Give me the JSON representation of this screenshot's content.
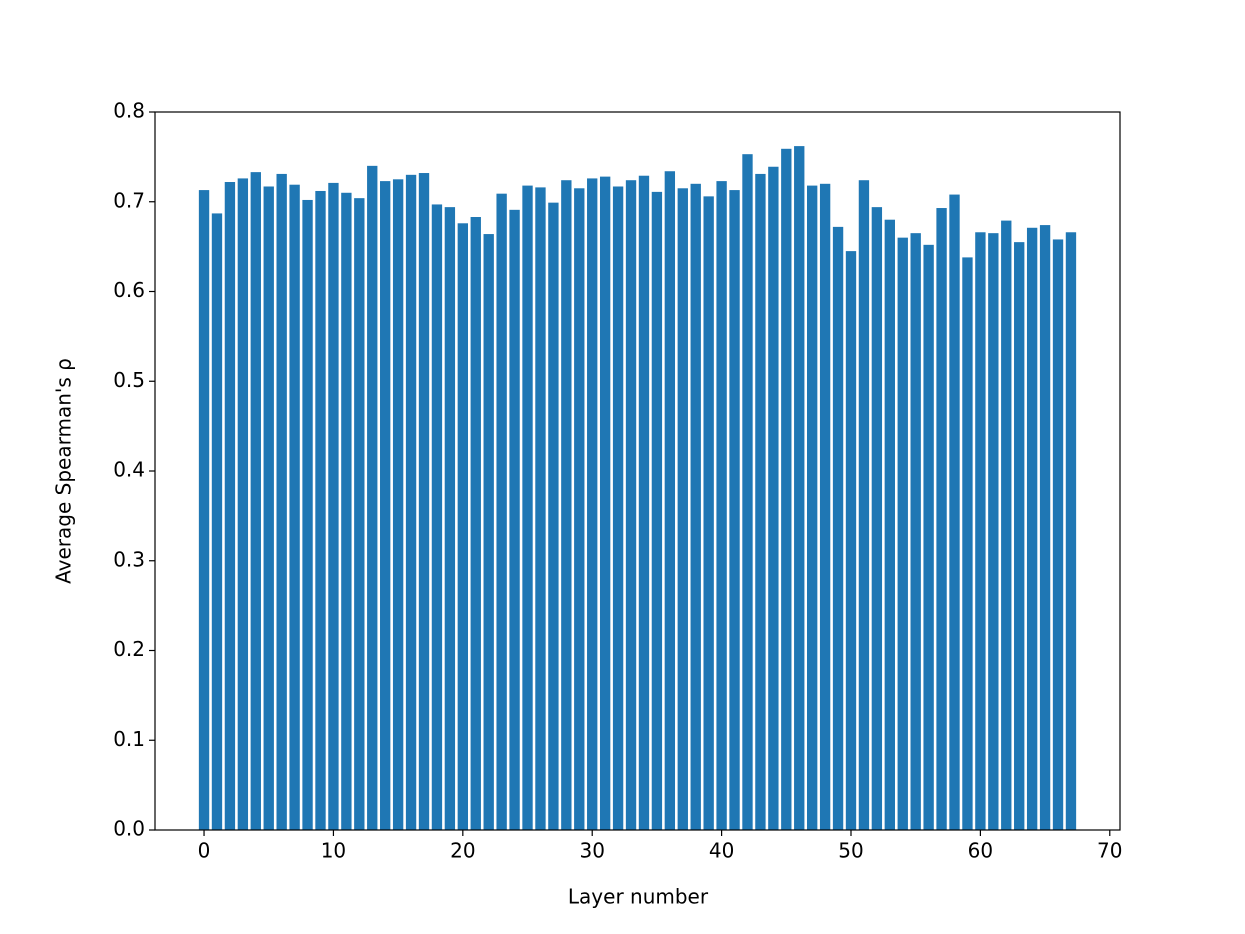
{
  "chart_data": {
    "type": "bar",
    "x_label": "Layer number",
    "y_label": "Average Spearman's ρ",
    "x": [
      0,
      1,
      2,
      3,
      4,
      5,
      6,
      7,
      8,
      9,
      10,
      11,
      12,
      13,
      14,
      15,
      16,
      17,
      18,
      19,
      20,
      21,
      22,
      23,
      24,
      25,
      26,
      27,
      28,
      29,
      30,
      31,
      32,
      33,
      34,
      35,
      36,
      37,
      38,
      39,
      40,
      41,
      42,
      43,
      44,
      45,
      46,
      47,
      48,
      49,
      50,
      51,
      52,
      53,
      54,
      55,
      56,
      57,
      58,
      59,
      60,
      61,
      62,
      63,
      64,
      65,
      66,
      67
    ],
    "values": [
      0.713,
      0.687,
      0.722,
      0.726,
      0.733,
      0.717,
      0.731,
      0.719,
      0.702,
      0.712,
      0.721,
      0.71,
      0.704,
      0.74,
      0.723,
      0.725,
      0.73,
      0.732,
      0.697,
      0.694,
      0.676,
      0.683,
      0.664,
      0.709,
      0.691,
      0.718,
      0.716,
      0.699,
      0.724,
      0.715,
      0.726,
      0.728,
      0.717,
      0.724,
      0.729,
      0.711,
      0.734,
      0.715,
      0.72,
      0.706,
      0.723,
      0.713,
      0.753,
      0.731,
      0.739,
      0.759,
      0.762,
      0.718,
      0.72,
      0.672,
      0.645,
      0.724,
      0.694,
      0.68,
      0.66,
      0.665,
      0.652,
      0.693,
      0.708,
      0.638,
      0.666,
      0.665,
      0.679,
      0.655,
      0.671,
      0.674,
      0.658,
      0.666
    ],
    "color": "#1f77b4",
    "xlim": [
      -3.79,
      70.79
    ],
    "xticks": [
      0,
      10,
      20,
      30,
      40,
      50,
      60,
      70
    ],
    "ylim": [
      0,
      0.8
    ],
    "yticks": [
      {
        "value": 0,
        "label": "0.0"
      },
      0.1,
      0.2,
      0.3,
      0.4,
      0.5,
      0.6,
      0.7,
      0.8
    ],
    "grid": false
  }
}
